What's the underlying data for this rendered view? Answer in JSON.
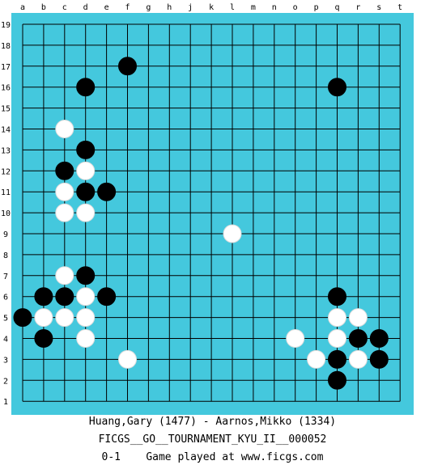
{
  "board": {
    "size": 19,
    "background_color": "#44C8DD",
    "line_color": "#000000",
    "columns": [
      "a",
      "b",
      "c",
      "d",
      "e",
      "f",
      "g",
      "h",
      "j",
      "k",
      "l",
      "m",
      "n",
      "o",
      "p",
      "q",
      "r",
      "s",
      "t"
    ],
    "rows": [
      "19",
      "18",
      "17",
      "16",
      "15",
      "14",
      "13",
      "12",
      "11",
      "10",
      "9",
      "8",
      "7",
      "6",
      "5",
      "4",
      "3",
      "2",
      "1"
    ],
    "black_stones": [
      "f17",
      "d16",
      "q16",
      "d13",
      "c12",
      "d11",
      "e11",
      "d7",
      "b6",
      "c6",
      "e6",
      "q6",
      "a5",
      "b4",
      "r4",
      "s4",
      "q3",
      "s3",
      "q2"
    ],
    "white_stones": [
      "c14",
      "d12",
      "c11",
      "c10",
      "d10",
      "l9",
      "c7",
      "d6",
      "b5",
      "c5",
      "d5",
      "q5",
      "r5",
      "d4",
      "o4",
      "q4",
      "f3",
      "p3",
      "r3"
    ]
  },
  "captions": {
    "players": "Huang,Gary (1477) - Aarnos,Mikko (1334)",
    "event": "FICGS__GO__TOURNAMENT_KYU_II__000052",
    "result": "0-1    Game played at www.ficgs.com"
  }
}
